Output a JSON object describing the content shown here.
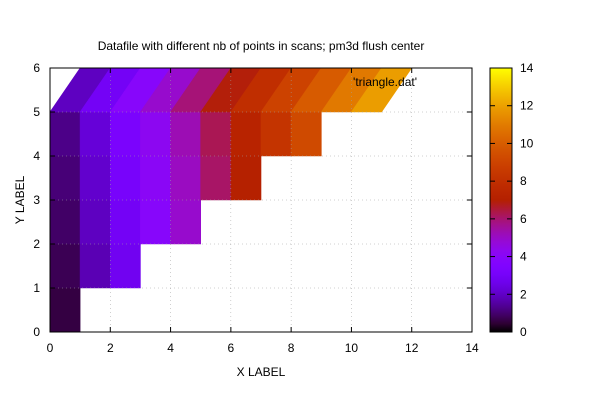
{
  "chart_data": {
    "type": "heatmap",
    "title": "Datafile with different nb of points in scans; pm3d flush center",
    "xlabel": "X LABEL",
    "ylabel": "Y LABEL",
    "legend_label": "'triangle.dat'",
    "legend_position": "top-right",
    "xlim": [
      0,
      14
    ],
    "ylim": [
      0,
      6
    ],
    "xticks": [
      0,
      2,
      4,
      6,
      8,
      10,
      12,
      14
    ],
    "yticks": [
      0,
      1,
      2,
      3,
      4,
      5,
      6
    ],
    "colorbar": {
      "range": [
        0,
        14
      ],
      "ticks": [
        0,
        2,
        4,
        6,
        8,
        10,
        12,
        14
      ],
      "palette": "gnuplot default (black-blue-red-yellow)"
    },
    "grid": true,
    "grid_style": "dotted",
    "scans": [
      {
        "y": 0,
        "x": [
          0,
          1
        ]
      },
      {
        "y": 1,
        "x": [
          0,
          1,
          2,
          3
        ]
      },
      {
        "y": 2,
        "x": [
          0,
          1,
          2,
          3,
          4,
          5
        ]
      },
      {
        "y": 3,
        "x": [
          0,
          1,
          2,
          3,
          4,
          5,
          6,
          7
        ]
      },
      {
        "y": 4,
        "x": [
          0,
          1,
          2,
          3,
          4,
          5,
          6,
          7,
          8,
          9
        ]
      },
      {
        "y": 5,
        "x": [
          0,
          1,
          2,
          3,
          4,
          5,
          6,
          7,
          8,
          9,
          10,
          11
        ]
      },
      {
        "y": 6,
        "x": [
          1,
          2,
          3,
          4,
          5,
          6,
          7,
          8,
          9,
          10,
          11,
          12
        ]
      }
    ],
    "z_rule": "z = x + y/6 (color value at each quad center)"
  }
}
